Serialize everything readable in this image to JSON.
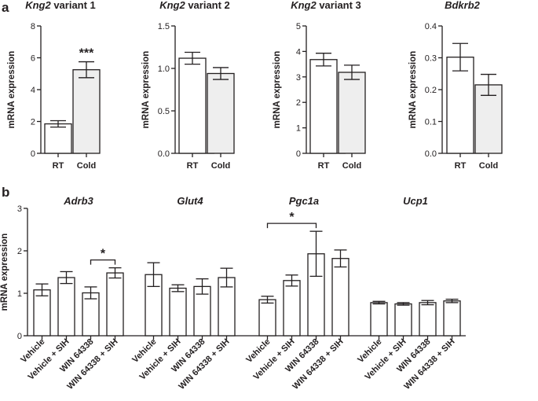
{
  "panel_labels": {
    "a": "a",
    "b": "b"
  },
  "colors": {
    "rt_fill": "#ffffff",
    "cold_fill": "#eeeeee",
    "stroke": "#231f20"
  },
  "chart_data": [
    {
      "id": "a1",
      "type": "bar",
      "panel": "a",
      "title_italic": "Kng2",
      "title_rest": " variant 1",
      "ylabel": "mRNA expression",
      "ylim": [
        0,
        8
      ],
      "yticks": [
        "0",
        "2",
        "4",
        "6",
        "8"
      ],
      "categories": [
        "RT",
        "Cold"
      ],
      "values": [
        1.85,
        5.25
      ],
      "errors": [
        0.2,
        0.5
      ],
      "annotations": [
        {
          "text": "***",
          "bar": 1
        }
      ]
    },
    {
      "id": "a2",
      "type": "bar",
      "panel": "a",
      "title_italic": "Kng2",
      "title_rest": " variant 2",
      "ylabel": "mRNA expression",
      "ylim": [
        0,
        1.5
      ],
      "yticks": [
        "0.0",
        "0.5",
        "1.0",
        "1.5"
      ],
      "categories": [
        "RT",
        "Cold"
      ],
      "values": [
        1.12,
        0.94
      ],
      "errors": [
        0.07,
        0.07
      ],
      "annotations": []
    },
    {
      "id": "a3",
      "type": "bar",
      "panel": "a",
      "title_italic": "Kng2",
      "title_rest": " variant 3",
      "ylabel": "mRNA expression",
      "ylim": [
        0,
        5
      ],
      "yticks": [
        "0",
        "1",
        "2",
        "3",
        "4",
        "5"
      ],
      "categories": [
        "RT",
        "Cold"
      ],
      "values": [
        3.68,
        3.18
      ],
      "errors": [
        0.25,
        0.28
      ],
      "annotations": []
    },
    {
      "id": "a4",
      "type": "bar",
      "panel": "a",
      "title_italic": "Bdkrb2",
      "title_rest": "",
      "ylabel": "mRNA expression",
      "ylim": [
        0,
        0.4
      ],
      "yticks": [
        "0.0",
        "0.1",
        "0.2",
        "0.3",
        "0.4"
      ],
      "categories": [
        "RT",
        "Cold"
      ],
      "values": [
        0.302,
        0.215
      ],
      "errors": [
        0.043,
        0.033
      ],
      "annotations": []
    },
    {
      "id": "b",
      "type": "bar",
      "panel": "b",
      "ylabel": "mRNA expression",
      "ylim": [
        0,
        3
      ],
      "yticks": [
        "0",
        "1",
        "2",
        "3"
      ],
      "group_titles": [
        "Adrb3",
        "Glut4",
        "Pgc1a",
        "Ucp1"
      ],
      "categories": [
        "Vehicle",
        "Vehicle + SIH",
        "WIN 64338",
        "WIN 64338 + SIH"
      ],
      "series": [
        {
          "name": "Adrb3",
          "values": [
            1.08,
            1.37,
            1.01,
            1.48
          ],
          "errors": [
            0.14,
            0.14,
            0.14,
            0.12
          ]
        },
        {
          "name": "Glut4",
          "values": [
            1.44,
            1.12,
            1.16,
            1.37
          ],
          "errors": [
            0.28,
            0.08,
            0.18,
            0.22
          ]
        },
        {
          "name": "Pgc1a",
          "values": [
            0.85,
            1.3,
            1.93,
            1.82
          ],
          "errors": [
            0.08,
            0.13,
            0.53,
            0.2
          ]
        },
        {
          "name": "Ucp1",
          "values": [
            0.78,
            0.75,
            0.78,
            0.82
          ],
          "errors": [
            0.03,
            0.03,
            0.05,
            0.04
          ]
        }
      ],
      "annotations": [
        {
          "text": "*",
          "group": 0,
          "from": 2,
          "to": 3
        },
        {
          "text": "*",
          "group": 2,
          "from": 0,
          "to": 2
        }
      ]
    }
  ]
}
